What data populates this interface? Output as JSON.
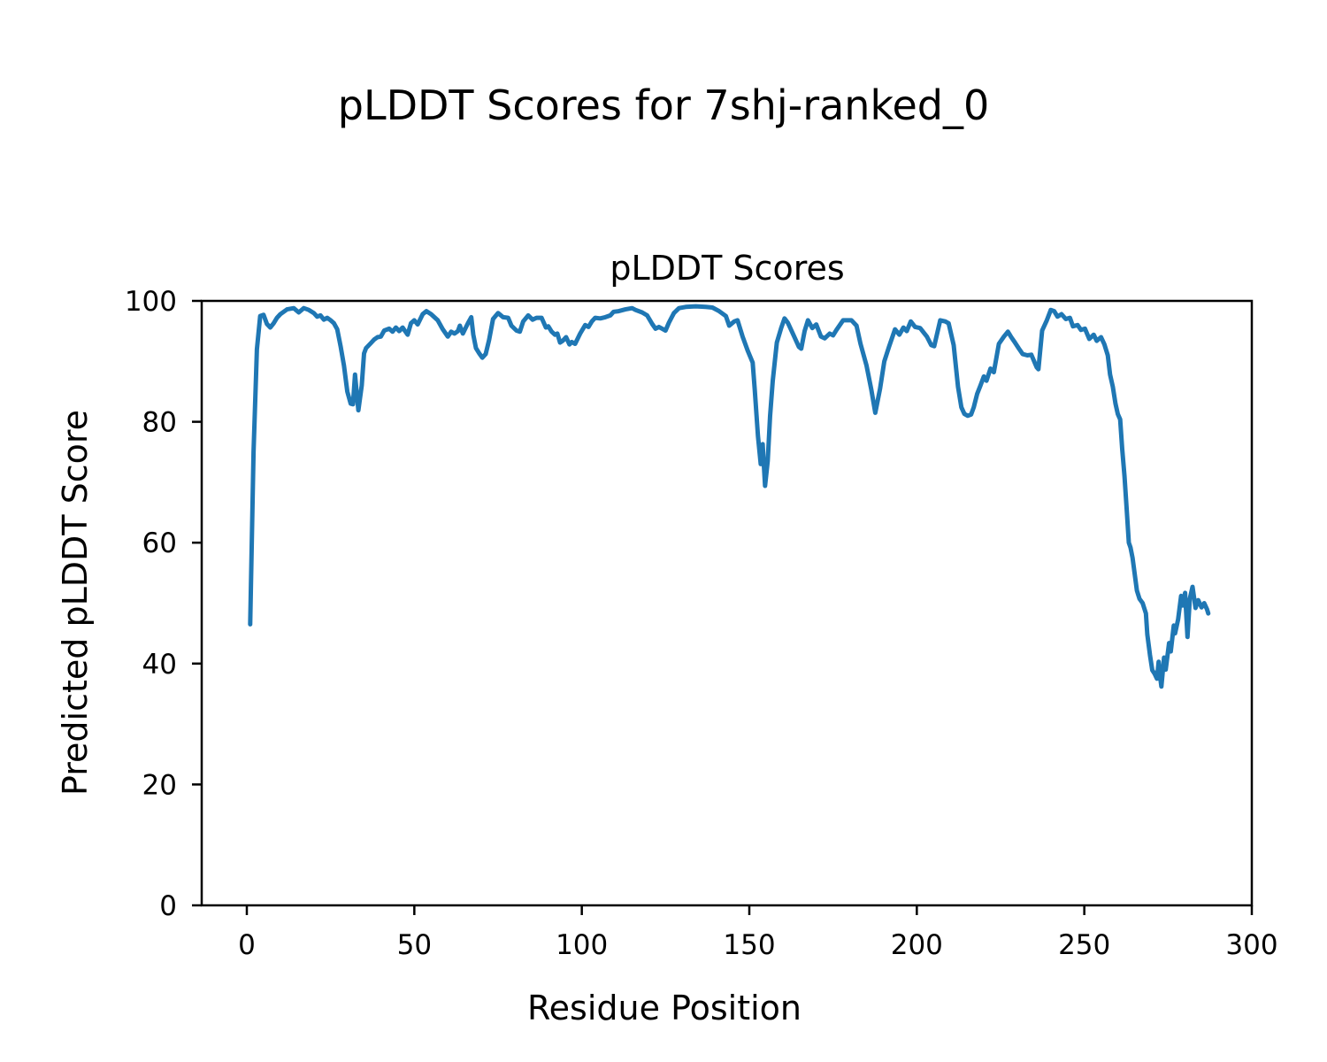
{
  "figure": {
    "suptitle": "pLDDT Scores for 7shj-ranked_0",
    "background": "#ffffff",
    "text_color": "#000000"
  },
  "chart_data": {
    "type": "line",
    "title": "pLDDT Scores",
    "xlabel": "Residue Position",
    "ylabel": "Predicted pLDDT Score",
    "xlim": [
      -13.5,
      300
    ],
    "ylim": [
      0,
      100
    ],
    "x_ticks": [
      0,
      50,
      100,
      150,
      200,
      250,
      300
    ],
    "y_ticks": [
      0,
      20,
      40,
      60,
      80,
      100
    ],
    "grid": false,
    "legend": "none",
    "line_color": "#1f77b4",
    "series": [
      {
        "name": "pLDDT",
        "points": [
          [
            1,
            46.5
          ],
          [
            2,
            75
          ],
          [
            3,
            92
          ],
          [
            4,
            97.5
          ],
          [
            5,
            97.7
          ],
          [
            6,
            96.2
          ],
          [
            7,
            95.6
          ],
          [
            8,
            96.3
          ],
          [
            9,
            97.2
          ],
          [
            10,
            97.8
          ],
          [
            12,
            98.6
          ],
          [
            14,
            98.8
          ],
          [
            15.5,
            98.1
          ],
          [
            17,
            98.8
          ],
          [
            18.5,
            98.5
          ],
          [
            20,
            98.0
          ],
          [
            21,
            97.4
          ],
          [
            22,
            97.6
          ],
          [
            23,
            96.9
          ],
          [
            24,
            97.2
          ],
          [
            25,
            96.8
          ],
          [
            26,
            96.3
          ],
          [
            27,
            95.3
          ],
          [
            28,
            92.5
          ],
          [
            29,
            89.3
          ],
          [
            30,
            85.0
          ],
          [
            31,
            83.0
          ],
          [
            31.7,
            82.9
          ],
          [
            32.3,
            87.8
          ],
          [
            33.3,
            81.9
          ],
          [
            34.3,
            86.0
          ],
          [
            35,
            91.3
          ],
          [
            35.6,
            92.2
          ],
          [
            37,
            93.0
          ],
          [
            38,
            93.6
          ],
          [
            39,
            94.0
          ],
          [
            40,
            94.1
          ],
          [
            41,
            95.1
          ],
          [
            42.5,
            95.4
          ],
          [
            43.5,
            94.9
          ],
          [
            44.5,
            95.6
          ],
          [
            45.5,
            95.0
          ],
          [
            46.5,
            95.6
          ],
          [
            48,
            94.4
          ],
          [
            49,
            96.3
          ],
          [
            50,
            96.8
          ],
          [
            51,
            96.1
          ],
          [
            52.5,
            97.8
          ],
          [
            53.6,
            98.3
          ],
          [
            55,
            97.8
          ],
          [
            57,
            96.8
          ],
          [
            58.5,
            95.3
          ],
          [
            60,
            94.1
          ],
          [
            61,
            94.9
          ],
          [
            62,
            94.6
          ],
          [
            63,
            95.0
          ],
          [
            63.6,
            95.9
          ],
          [
            64.5,
            94.6
          ],
          [
            66,
            96.3
          ],
          [
            67,
            97.3
          ],
          [
            67.6,
            94.4
          ],
          [
            68.4,
            92.2
          ],
          [
            69.4,
            91.3
          ],
          [
            70.3,
            90.6
          ],
          [
            71.3,
            91.2
          ],
          [
            72.3,
            93.5
          ],
          [
            73.5,
            97.0
          ],
          [
            75,
            98.0
          ],
          [
            76.5,
            97.3
          ],
          [
            78,
            97.2
          ],
          [
            79,
            95.9
          ],
          [
            80.5,
            95.1
          ],
          [
            81.5,
            94.9
          ],
          [
            82.5,
            96.6
          ],
          [
            84,
            97.6
          ],
          [
            85.3,
            96.9
          ],
          [
            86.5,
            97.2
          ],
          [
            88,
            97.2
          ],
          [
            89.3,
            95.6
          ],
          [
            90,
            95.8
          ],
          [
            91,
            94.9
          ],
          [
            92,
            94.4
          ],
          [
            92.7,
            94.6
          ],
          [
            93.5,
            93.1
          ],
          [
            94.3,
            93.4
          ],
          [
            95.3,
            94.0
          ],
          [
            96.3,
            92.8
          ],
          [
            97,
            93.2
          ],
          [
            98,
            92.9
          ],
          [
            99.5,
            94.6
          ],
          [
            101,
            96.0
          ],
          [
            102,
            95.7
          ],
          [
            103,
            96.6
          ],
          [
            104,
            97.2
          ],
          [
            105.5,
            97.1
          ],
          [
            107,
            97.3
          ],
          [
            108.5,
            97.6
          ],
          [
            109.5,
            98.2
          ],
          [
            111,
            98.3
          ],
          [
            113,
            98.6
          ],
          [
            115,
            98.8
          ],
          [
            116,
            98.5
          ],
          [
            118,
            98.1
          ],
          [
            119.5,
            97.6
          ],
          [
            121,
            96.2
          ],
          [
            122,
            95.4
          ],
          [
            123,
            95.7
          ],
          [
            124,
            95.4
          ],
          [
            125,
            95.1
          ],
          [
            126,
            96.4
          ],
          [
            127.5,
            98.0
          ],
          [
            129,
            98.8
          ],
          [
            131,
            99.0
          ],
          [
            134,
            99.1
          ],
          [
            137,
            99.0
          ],
          [
            139,
            98.9
          ],
          [
            141,
            98.3
          ],
          [
            143,
            97.5
          ],
          [
            144,
            95.9
          ],
          [
            145.5,
            96.6
          ],
          [
            146.5,
            96.8
          ],
          [
            148,
            94.1
          ],
          [
            149.5,
            91.8
          ],
          [
            151,
            89.8
          ],
          [
            151.6,
            85.4
          ],
          [
            152.6,
            77.6
          ],
          [
            153.4,
            73.0
          ],
          [
            154,
            76.3
          ],
          [
            154.7,
            69.4
          ],
          [
            155.5,
            73.5
          ],
          [
            156.2,
            81.0
          ],
          [
            157,
            86.8
          ],
          [
            158.2,
            93.1
          ],
          [
            159.5,
            95.5
          ],
          [
            160.5,
            97.1
          ],
          [
            161.5,
            96.4
          ],
          [
            163,
            94.6
          ],
          [
            164.8,
            92.4
          ],
          [
            165.5,
            92.1
          ],
          [
            166.5,
            95.0
          ],
          [
            167.5,
            96.8
          ],
          [
            168.8,
            95.5
          ],
          [
            170,
            96.1
          ],
          [
            171.4,
            94.1
          ],
          [
            172.5,
            93.8
          ],
          [
            174,
            94.6
          ],
          [
            175,
            94.3
          ],
          [
            176,
            95.2
          ],
          [
            178,
            96.8
          ],
          [
            180.5,
            96.8
          ],
          [
            182,
            95.9
          ],
          [
            183.2,
            92.9
          ],
          [
            185,
            89.3
          ],
          [
            186.4,
            85.4
          ],
          [
            187.6,
            81.5
          ],
          [
            189,
            85.4
          ],
          [
            190.3,
            90.0
          ],
          [
            191.7,
            92.4
          ],
          [
            193.5,
            95.3
          ],
          [
            194.8,
            94.4
          ],
          [
            196,
            95.6
          ],
          [
            197,
            95.0
          ],
          [
            198.2,
            96.6
          ],
          [
            199.5,
            95.7
          ],
          [
            201,
            95.5
          ],
          [
            203,
            94.1
          ],
          [
            204.3,
            92.7
          ],
          [
            205.2,
            92.5
          ],
          [
            207,
            96.8
          ],
          [
            208.5,
            96.6
          ],
          [
            209.5,
            96.3
          ],
          [
            211,
            92.7
          ],
          [
            212.3,
            85.8
          ],
          [
            213.3,
            82.4
          ],
          [
            214.2,
            81.3
          ],
          [
            215.2,
            81.0
          ],
          [
            216.2,
            81.2
          ],
          [
            217,
            82.4
          ],
          [
            218,
            84.6
          ],
          [
            219,
            86.0
          ],
          [
            220,
            87.5
          ],
          [
            220.8,
            86.8
          ],
          [
            222,
            88.8
          ],
          [
            223,
            88.2
          ],
          [
            224.5,
            92.9
          ],
          [
            226,
            94.1
          ],
          [
            227.2,
            94.9
          ],
          [
            228.2,
            94.0
          ],
          [
            229.3,
            93.1
          ],
          [
            230.5,
            92.1
          ],
          [
            231.6,
            91.2
          ],
          [
            233,
            91.0
          ],
          [
            234.2,
            91.1
          ],
          [
            235.8,
            89.0
          ],
          [
            236.3,
            88.7
          ],
          [
            237.4,
            95.1
          ],
          [
            238.8,
            96.8
          ],
          [
            240,
            98.5
          ],
          [
            241,
            98.3
          ],
          [
            242,
            97.4
          ],
          [
            243.2,
            97.8
          ],
          [
            244.5,
            97.0
          ],
          [
            245.7,
            97.2
          ],
          [
            246.6,
            95.8
          ],
          [
            248,
            96.0
          ],
          [
            249,
            95.2
          ],
          [
            250.2,
            95.4
          ],
          [
            251.5,
            93.7
          ],
          [
            252.8,
            94.4
          ],
          [
            253.7,
            93.4
          ],
          [
            255,
            94.0
          ],
          [
            256,
            92.8
          ],
          [
            257,
            91.0
          ],
          [
            257.7,
            87.8
          ],
          [
            258.5,
            85.8
          ],
          [
            259.3,
            83.0
          ],
          [
            260,
            81.3
          ],
          [
            260.7,
            80.4
          ],
          [
            261.3,
            75.5
          ],
          [
            262,
            71.0
          ],
          [
            262.7,
            65.0
          ],
          [
            263.3,
            60.0
          ],
          [
            263.8,
            59.2
          ],
          [
            264.4,
            57.5
          ],
          [
            265.7,
            52.1
          ],
          [
            266.5,
            50.7
          ],
          [
            267.4,
            50.0
          ],
          [
            268.4,
            48.3
          ],
          [
            268.8,
            44.8
          ],
          [
            269.6,
            41.4
          ],
          [
            270.3,
            38.9
          ],
          [
            271,
            38.3
          ],
          [
            271.7,
            37.5
          ],
          [
            272.2,
            40.3
          ],
          [
            272.6,
            38.0
          ],
          [
            273,
            36.2
          ],
          [
            273.8,
            41.0
          ],
          [
            274.3,
            39.0
          ],
          [
            275.3,
            43.4
          ],
          [
            275.8,
            42.0
          ],
          [
            276.7,
            46.3
          ],
          [
            277.1,
            45.0
          ],
          [
            278,
            47.3
          ],
          [
            278.9,
            51.2
          ],
          [
            279.4,
            49.6
          ],
          [
            280.1,
            51.7
          ],
          [
            280.8,
            44.4
          ],
          [
            281.5,
            50.7
          ],
          [
            282.3,
            52.7
          ],
          [
            283.2,
            49.2
          ],
          [
            284,
            50.5
          ],
          [
            285,
            49.3
          ],
          [
            285.8,
            50.0
          ],
          [
            286.6,
            49.0
          ],
          [
            287,
            48.3
          ]
        ]
      }
    ]
  }
}
